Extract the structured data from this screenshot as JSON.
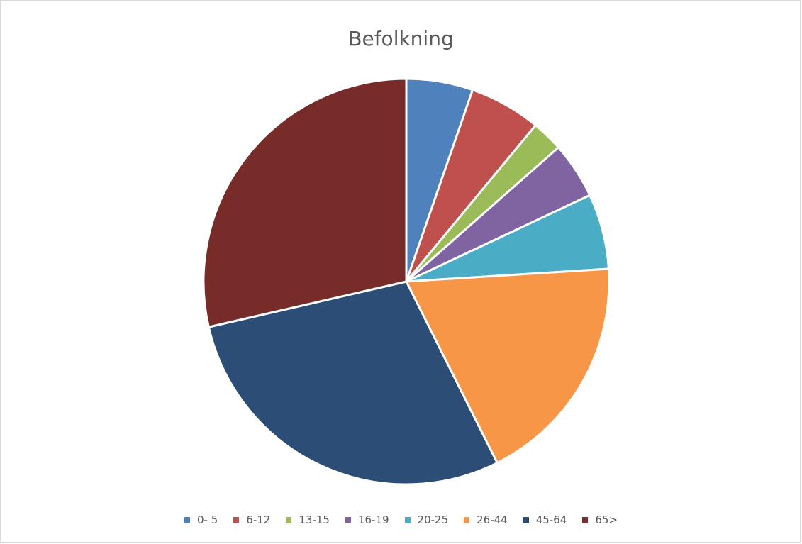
{
  "chart_data": {
    "type": "pie",
    "title": "Befolkning",
    "categories": [
      "0- 5",
      "6-12",
      "13-15",
      "16-19",
      "20-25",
      "26-44",
      "45-64",
      "65>"
    ],
    "values": [
      5.3,
      5.7,
      2.5,
      4.5,
      6.0,
      18.6,
      28.8,
      28.6
    ],
    "colors": [
      "#4f81bd",
      "#c0504d",
      "#9bbb59",
      "#8064a2",
      "#4bacc6",
      "#f79646",
      "#2c4d75",
      "#772c2a"
    ],
    "legend_position": "bottom"
  }
}
